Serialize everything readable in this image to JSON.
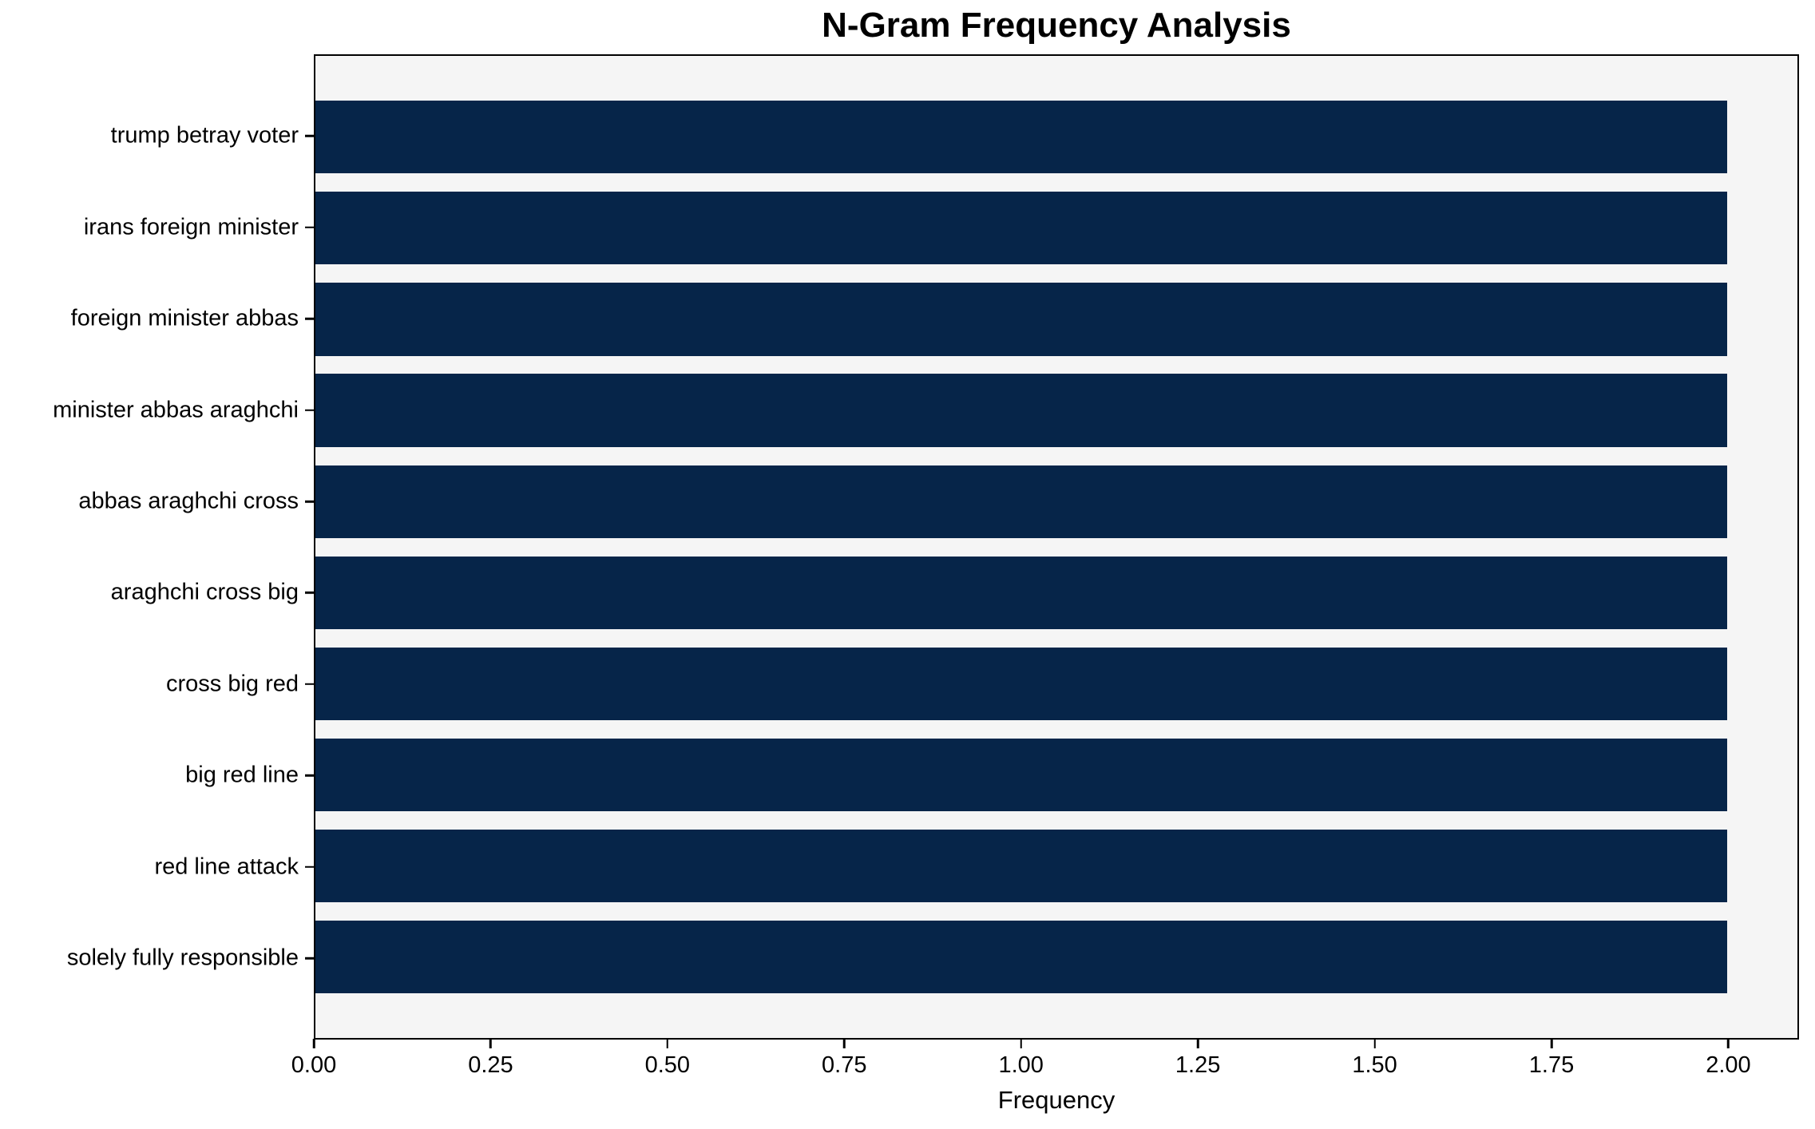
{
  "chart_data": {
    "type": "bar",
    "orientation": "horizontal",
    "title": "N-Gram Frequency Analysis",
    "categories": [
      "trump betray voter",
      "irans foreign minister",
      "foreign minister abbas",
      "minister abbas araghchi",
      "abbas araghchi cross",
      "araghchi cross big",
      "cross big red",
      "big red line",
      "red line attack",
      "solely fully responsible"
    ],
    "values": [
      2,
      2,
      2,
      2,
      2,
      2,
      2,
      2,
      2,
      2
    ],
    "xlabel": "Frequency",
    "ylabel": "",
    "xlim": [
      0,
      2.1
    ],
    "xtick_values": [
      0.0,
      0.25,
      0.5,
      0.75,
      1.0,
      1.25,
      1.5,
      1.75,
      2.0
    ],
    "xtick_labels": [
      "0.00",
      "0.25",
      "0.50",
      "0.75",
      "1.00",
      "1.25",
      "1.50",
      "1.75",
      "2.00"
    ],
    "grid": false,
    "legend": null,
    "colors": {
      "bar": "#062549",
      "plot_background": "#f5f5f5",
      "figure_background": "#ffffff",
      "spine": "#000000",
      "text": "#000000"
    }
  }
}
